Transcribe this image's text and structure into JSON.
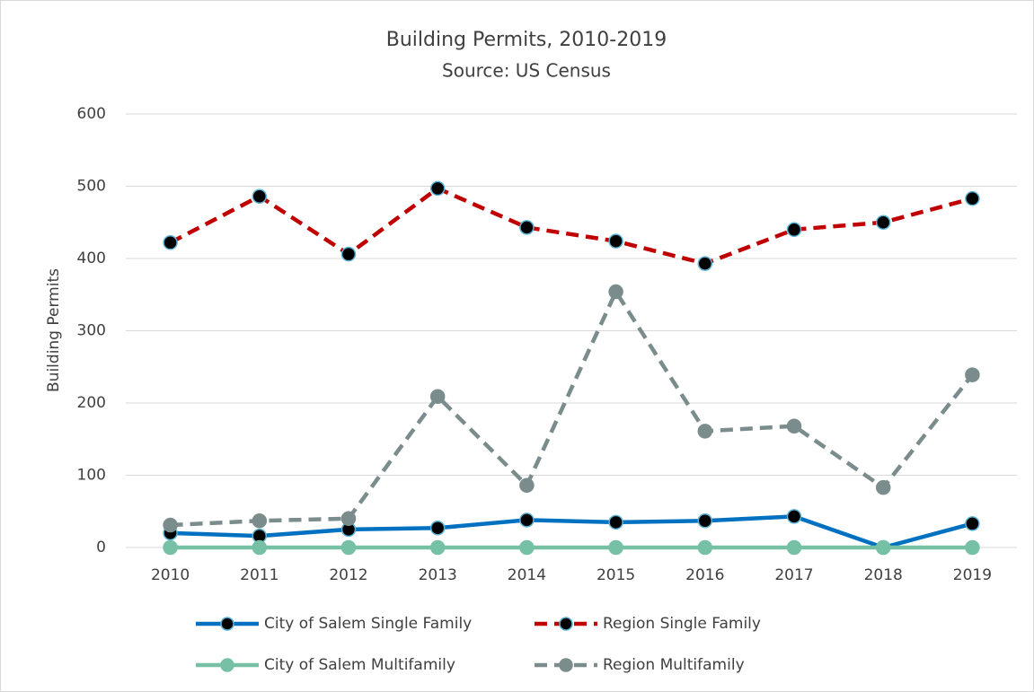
{
  "chart_data": {
    "type": "line",
    "title": "Building Permits, 2010-2019",
    "subtitle": "Source: US Census",
    "y_label": "Building Permits",
    "categories": [
      "2010",
      "2011",
      "2012",
      "2013",
      "2014",
      "2015",
      "2016",
      "2017",
      "2018",
      "2019"
    ],
    "series": [
      {
        "name": "City of Salem Single Family",
        "color": "#0070c0",
        "dashed": false,
        "marker_color": "#000000",
        "marker_edge": "#5ab4d6",
        "values": [
          20,
          16,
          25,
          27,
          38,
          35,
          37,
          43,
          0,
          33
        ]
      },
      {
        "name": "Region Single Family",
        "color": "#c00000",
        "dashed": true,
        "marker_color": "#000000",
        "marker_edge": "#5ab4d6",
        "values": [
          422,
          486,
          406,
          497,
          443,
          424,
          393,
          440,
          450,
          483
        ]
      },
      {
        "name": "City of Salem Multifamily",
        "color": "#76c0a6",
        "dashed": false,
        "marker_color": "#76c0a6",
        "marker_edge": "#76c0a6",
        "values": [
          0,
          0,
          0,
          0,
          0,
          0,
          0,
          0,
          0,
          0
        ]
      },
      {
        "name": "Region Multifamily",
        "color": "#7b8c8c",
        "dashed": true,
        "marker_color": "#7b8c8c",
        "marker_edge": "#7b8c8c",
        "values": [
          31,
          37,
          40,
          209,
          86,
          354,
          161,
          168,
          83,
          239
        ]
      }
    ],
    "ylim": [
      0,
      600
    ],
    "yticks": [
      0,
      100,
      200,
      300,
      400,
      500,
      600
    ],
    "grid": true,
    "legend": "bottom"
  }
}
